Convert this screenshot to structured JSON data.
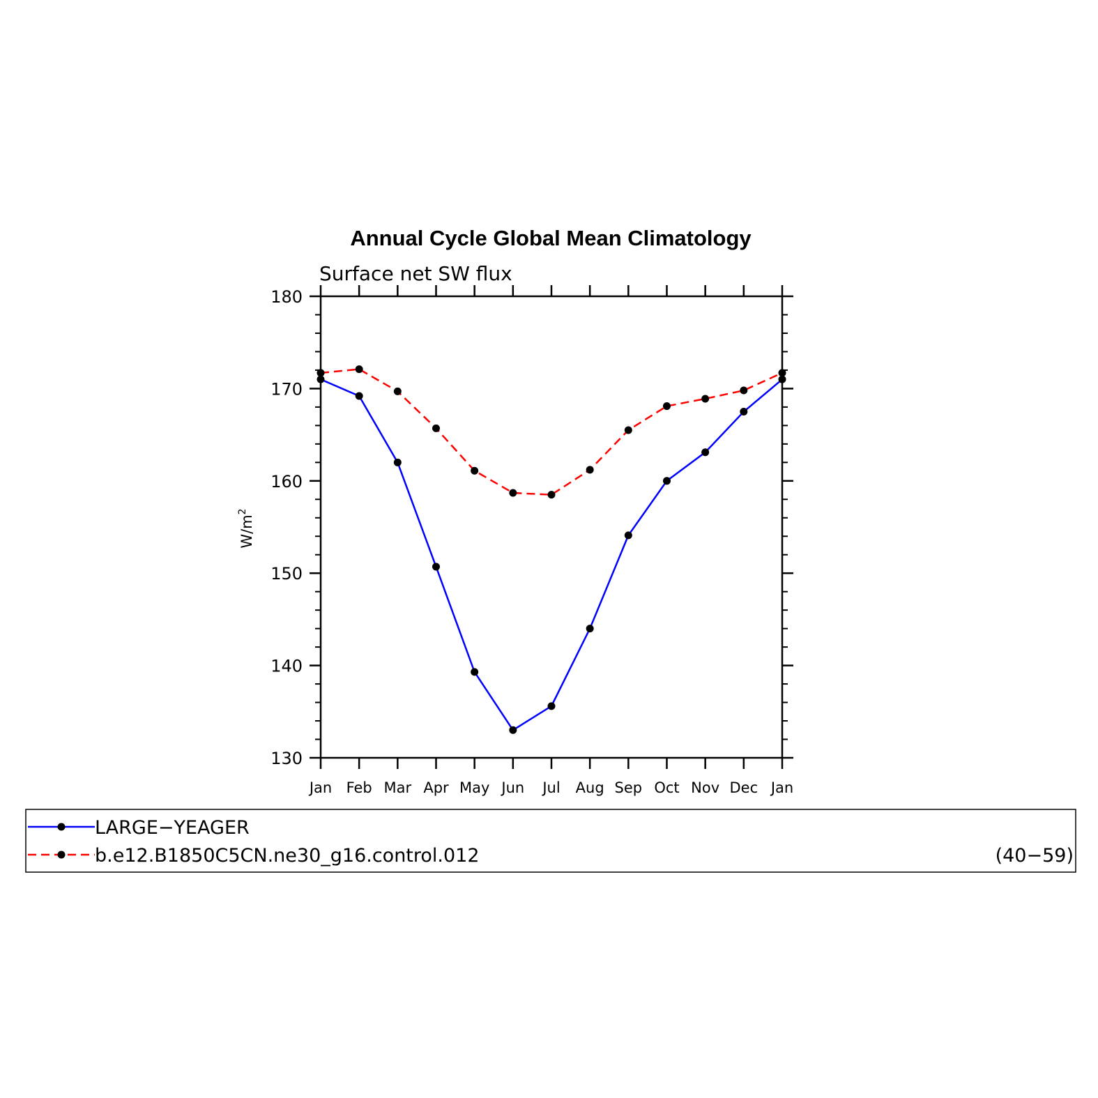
{
  "chart_data": {
    "type": "line",
    "title": "Annual Cycle Global Mean Climatology",
    "subtitle": "Surface net SW flux",
    "ylabel": "W/m",
    "ylabel_sup": "2",
    "ylim": [
      130,
      180
    ],
    "yticks": [
      "130",
      "140",
      "150",
      "160",
      "170",
      "180"
    ],
    "categories": [
      "Jan",
      "Feb",
      "Mar",
      "Apr",
      "May",
      "Jun",
      "Jul",
      "Aug",
      "Sep",
      "Oct",
      "Nov",
      "Dec",
      "Jan"
    ],
    "series": [
      {
        "name": "LARGE−YEAGER",
        "color": "#0000ff",
        "dash": "solid",
        "values": [
          171.0,
          169.2,
          162.0,
          150.7,
          139.3,
          133.0,
          135.6,
          144.0,
          154.1,
          160.0,
          163.1,
          167.5,
          171.0
        ]
      },
      {
        "name": "b.e12.B1850C5CN.ne30_g16.control.012",
        "color": "#ff0000",
        "dash": "dashed",
        "values": [
          171.7,
          172.1,
          169.7,
          165.7,
          161.1,
          158.7,
          158.5,
          161.2,
          165.5,
          168.1,
          168.9,
          169.8,
          171.7
        ]
      }
    ],
    "legend_note": "(40−59)",
    "legend_position": "bottom",
    "grid": false
  }
}
